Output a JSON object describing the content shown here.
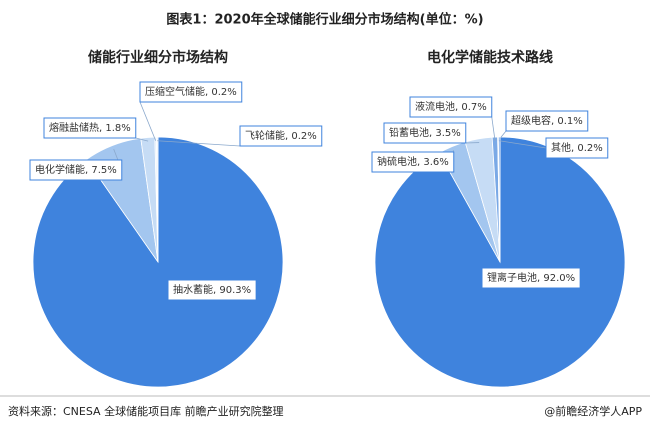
{
  "title": "图表1：2020年全球储能行业细分市场结构(单位：%)",
  "source": "资料来源：CNESA 全球储能项目库 前瞻产业研究院整理",
  "credit": "@前瞻经济学人APP",
  "chart_data": [
    {
      "type": "pie",
      "title": "储能行业细分市场结构",
      "values": [
        90.3,
        7.5,
        1.8,
        0.2,
        0.2
      ],
      "value_labels": [
        "抽水蓄能, 90.3%",
        "电化学储能, 7.5%",
        "熔融盐储热, 1.8%",
        "压缩空气储能, 0.2%",
        "飞轮储能, 0.2%"
      ],
      "colors": [
        "#3f83dd",
        "#a3c6ef",
        "#c6dcf5",
        "#dbe8f8",
        "#e6eff9"
      ]
    },
    {
      "type": "pie",
      "title": "电化学储能技术路线",
      "values": [
        92.0,
        3.6,
        3.5,
        0.7,
        0.1,
        0.2
      ],
      "value_labels": [
        "锂离子电池, 92.0%",
        "钠硫电池, 3.6%",
        "铅蓄电池, 3.5%",
        "液流电池, 0.7%",
        "超级电容, 0.1%",
        "其他, 0.2%"
      ],
      "colors": [
        "#3f83dd",
        "#a3c6ef",
        "#c6dcf5",
        "#7aa9e6",
        "#2f6fc6",
        "#5f97e2"
      ]
    }
  ]
}
